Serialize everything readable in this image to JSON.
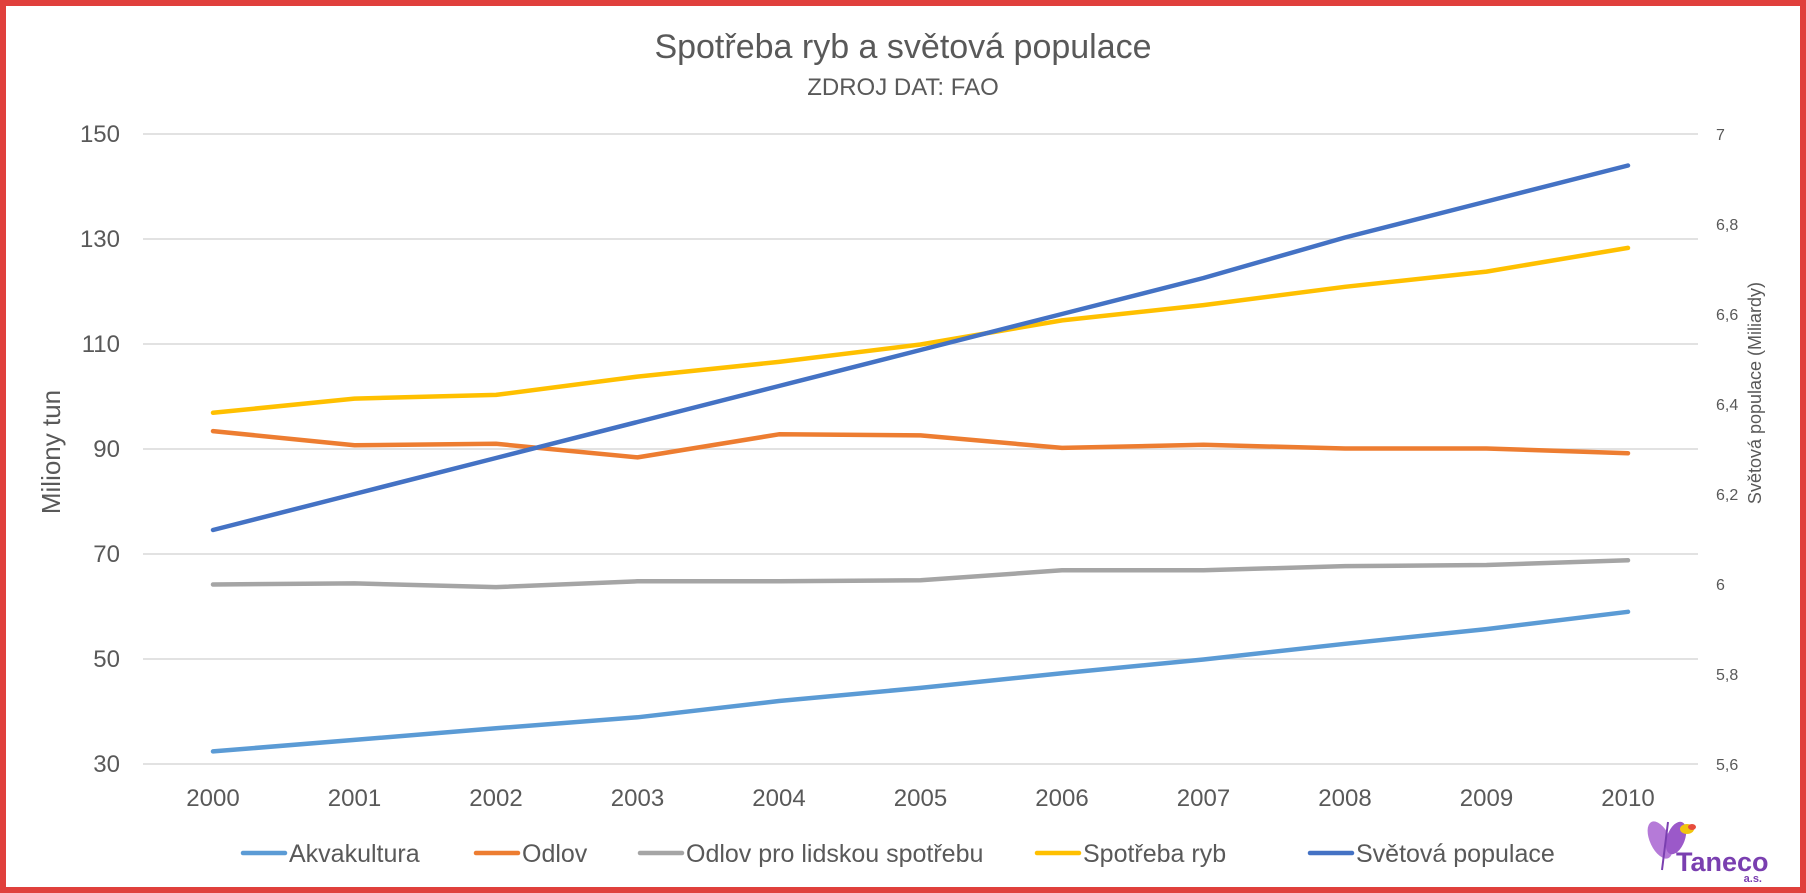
{
  "chart_data": {
    "type": "line",
    "title": "Spotřeba ryb a světová populace",
    "subtitle": "ZDROJ DAT: FAO",
    "ylabel": "Miliony tun",
    "y2label": "Světová populace (Miliardy)",
    "ylim": [
      30,
      150
    ],
    "y2lim": [
      5.6,
      7
    ],
    "yticks": [
      "150",
      "130",
      "110",
      "90",
      "70",
      "50",
      "30"
    ],
    "y2ticks": [
      "7",
      "6,8",
      "6,6",
      "6,4",
      "6,2",
      "6",
      "5,8",
      "5,6"
    ],
    "x": [
      "2000",
      "2001",
      "2002",
      "2003",
      "2004",
      "2005",
      "2006",
      "2007",
      "2008",
      "2009",
      "2010"
    ],
    "grid": true,
    "legend_position": "bottom",
    "series": [
      {
        "name": "Akvakultura",
        "axis": "left",
        "color": "#5b9bd5",
        "values": [
          32.4,
          34.6,
          36.8,
          38.9,
          42.0,
          44.5,
          47.3,
          49.9,
          52.9,
          55.7,
          59.0
        ]
      },
      {
        "name": "Odlov",
        "axis": "left",
        "color": "#ed7d31",
        "values": [
          93.4,
          90.7,
          91.0,
          88.4,
          92.8,
          92.6,
          90.2,
          90.8,
          90.1,
          90.1,
          89.2
        ]
      },
      {
        "name": "Odlov pro lidskou spotřebu",
        "axis": "left",
        "color": "#a5a5a5",
        "values": [
          64.2,
          64.4,
          63.7,
          64.8,
          64.8,
          65.0,
          66.9,
          66.9,
          67.7,
          67.9,
          68.8
        ]
      },
      {
        "name": "Spotřeba ryb",
        "axis": "left",
        "color": "#ffc000",
        "values": [
          96.9,
          99.6,
          100.3,
          103.8,
          106.6,
          109.9,
          114.5,
          117.4,
          120.9,
          123.8,
          128.3
        ]
      },
      {
        "name": "Světová populace",
        "axis": "right",
        "color": "#4472c4",
        "values": [
          6.12,
          6.2,
          6.28,
          6.36,
          6.44,
          6.52,
          6.6,
          6.68,
          6.77,
          6.85,
          6.93
        ]
      }
    ]
  },
  "logo": {
    "text": "Taneco",
    "sub": "a.s."
  }
}
